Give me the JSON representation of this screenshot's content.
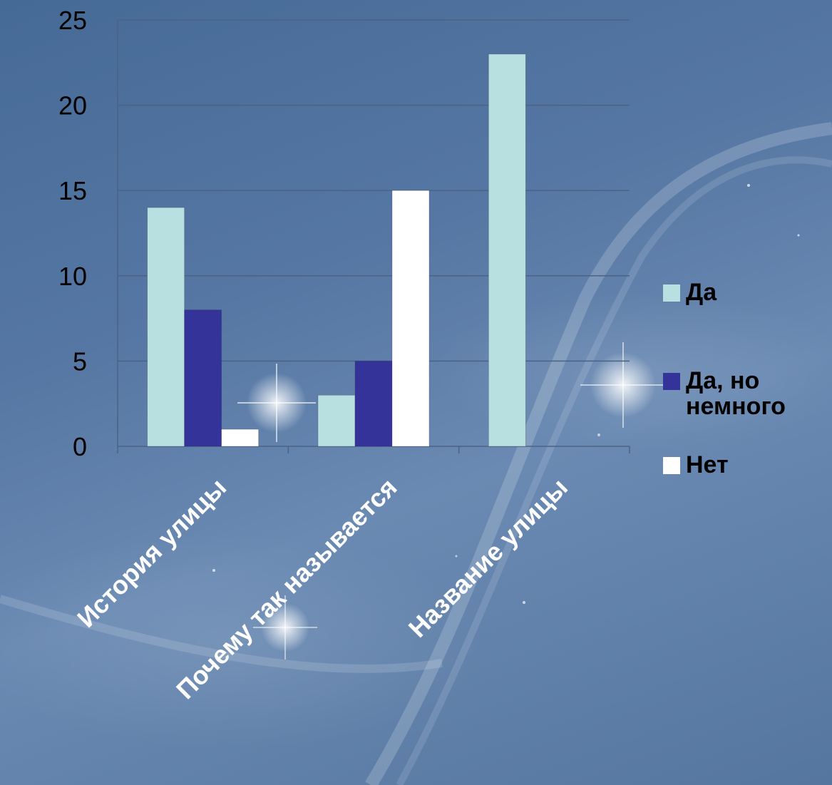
{
  "chart_data": {
    "type": "bar",
    "title": "",
    "xlabel": "",
    "ylabel": "",
    "categories": [
      "История улицы",
      "Почему так называется",
      "Название улицы"
    ],
    "series": [
      {
        "name": "Да",
        "color": "#b8e0e0",
        "values": [
          14,
          3,
          23
        ]
      },
      {
        "name": "Да, но немного",
        "color": "#33339a",
        "values": [
          8,
          5,
          0
        ]
      },
      {
        "name": "Нет",
        "color": "#ffffff",
        "values": [
          1,
          15,
          0
        ]
      }
    ],
    "ylim": [
      0,
      25
    ],
    "yticks": [
      0,
      5,
      10,
      15,
      20,
      25
    ],
    "grid": true,
    "legend_position": "right"
  }
}
